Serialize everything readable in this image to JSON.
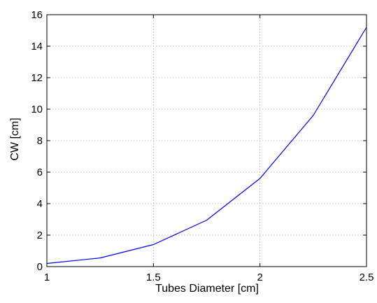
{
  "chart_data": {
    "type": "line",
    "title": "",
    "xlabel": "Tubes Diameter [cm]",
    "ylabel": "CW [cm]",
    "xlim": [
      1,
      2.5
    ],
    "ylim": [
      0,
      16
    ],
    "xticks": [
      1,
      1.5,
      2,
      2.5
    ],
    "xtick_labels": [
      "1",
      "1.5",
      "2",
      "2.5"
    ],
    "yticks": [
      0,
      2,
      4,
      6,
      8,
      10,
      12,
      14,
      16
    ],
    "ytick_labels": [
      "0",
      "2",
      "4",
      "6",
      "8",
      "10",
      "12",
      "14",
      "16"
    ],
    "grid": true,
    "legend": null,
    "series": [
      {
        "color": "#0000ff",
        "x": [
          1,
          1.25,
          1.5,
          1.75,
          2,
          2.25,
          2.5
        ],
        "y": [
          0.2,
          0.55,
          1.4,
          2.95,
          5.6,
          9.6,
          15.2
        ]
      }
    ]
  }
}
